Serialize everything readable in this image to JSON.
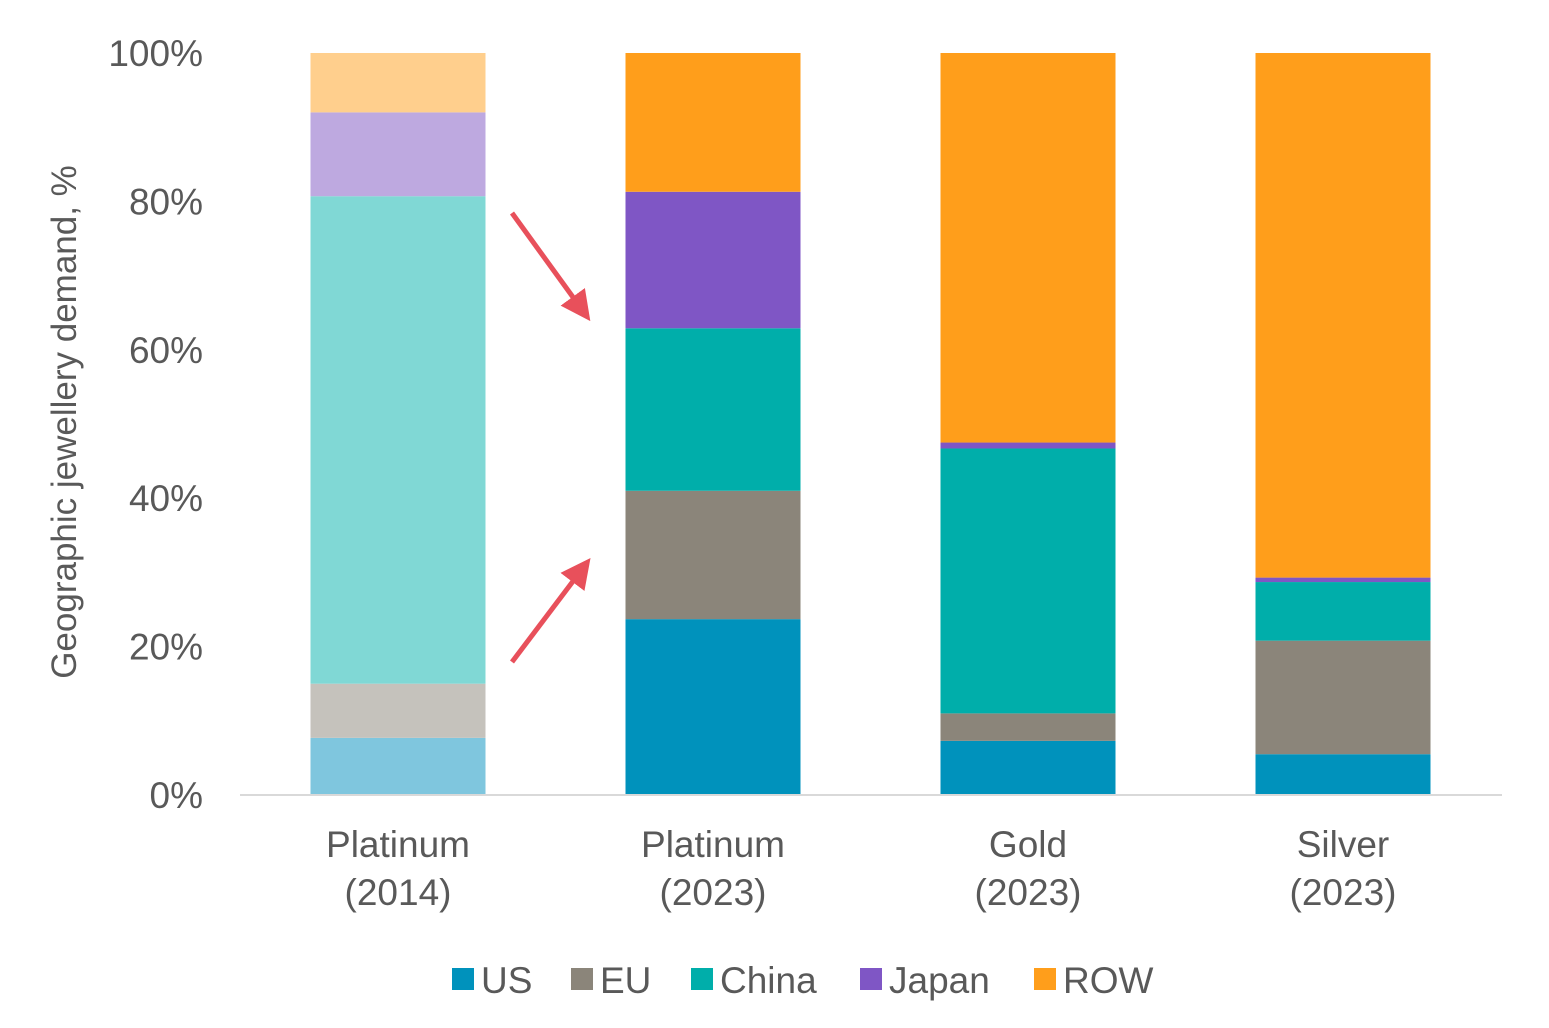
{
  "chart_data": {
    "type": "bar",
    "stacked": true,
    "title": "",
    "xlabel": "",
    "ylabel": "Geographic jewellery demand, %",
    "ylim": [
      0,
      100
    ],
    "yticks": [
      "0%",
      "20%",
      "40%",
      "60%",
      "80%",
      "100%"
    ],
    "categories": [
      {
        "line1": "Platinum",
        "line2": "(2014)"
      },
      {
        "line1": "Platinum",
        "line2": "(2023)"
      },
      {
        "line1": "Gold",
        "line2": "(2023)"
      },
      {
        "line1": "Silver",
        "line2": "(2023)"
      }
    ],
    "series": [
      {
        "name": "US",
        "color": "#0092BC",
        "faded_color": "#7FC6DE",
        "values": [
          7.7,
          23.7,
          7.3,
          5.5
        ]
      },
      {
        "name": "EU",
        "color": "#8B857A",
        "faded_color": "#C5C2BC",
        "values": [
          7.3,
          17.3,
          3.7,
          15.3
        ]
      },
      {
        "name": "China",
        "color": "#00AEAA",
        "faded_color": "#80D8D5",
        "values": [
          65.7,
          21.9,
          35.7,
          7.9
        ]
      },
      {
        "name": "Japan",
        "color": "#7F56C5",
        "faded_color": "#BEA9E0",
        "values": [
          11.3,
          18.4,
          0.8,
          0.6
        ]
      },
      {
        "name": "ROW",
        "color": "#FF9E1B",
        "faded_color": "#FFCF8D",
        "values": [
          8.0,
          18.7,
          52.5,
          70.7
        ]
      }
    ],
    "faded_categories": [
      0
    ],
    "legend_position": "bottom",
    "annotations": [
      {
        "type": "arrow",
        "color": "#E8505B",
        "meaning": "China and Japan share down from 2014 to 2023"
      },
      {
        "type": "arrow",
        "color": "#E8505B",
        "meaning": "US and EU share up from 2014 to 2023"
      }
    ]
  }
}
